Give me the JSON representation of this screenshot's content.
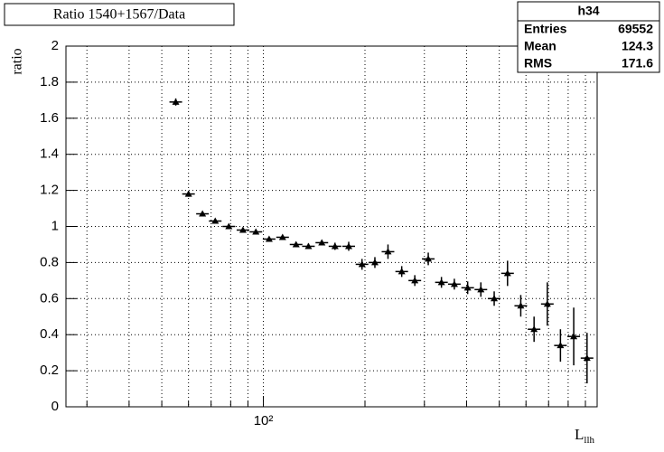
{
  "chart_data": {
    "type": "errorbar",
    "title": "Ratio 1540+1567/Data",
    "ylabel": "ratio",
    "xlabel": {
      "text": "L",
      "subscript": "llh"
    },
    "xscale": "log",
    "xlim": [
      26,
      975
    ],
    "ylim": [
      0,
      2
    ],
    "xticks": [
      {
        "value": 100,
        "label": "10²"
      }
    ],
    "xminor": [
      30,
      40,
      50,
      60,
      70,
      80,
      90,
      200,
      300,
      400,
      500,
      600,
      700,
      800,
      900
    ],
    "yticks": [
      0,
      0.2,
      0.4,
      0.6,
      0.8,
      1,
      1.2,
      1.4,
      1.6,
      1.8,
      2
    ],
    "grid": true,
    "color": "#000000",
    "x": [
      55,
      60,
      66,
      72,
      79,
      87,
      95,
      104,
      114,
      125,
      136,
      149,
      163,
      179,
      196,
      214,
      234,
      257,
      281,
      308,
      337,
      368,
      403,
      441,
      483,
      529,
      579,
      634,
      694,
      759,
      831,
      910
    ],
    "values": [
      1.69,
      1.18,
      1.07,
      1.03,
      1.0,
      0.98,
      0.97,
      0.93,
      0.94,
      0.9,
      0.89,
      0.91,
      0.89,
      0.89,
      0.79,
      0.8,
      0.86,
      0.75,
      0.7,
      0.82,
      0.69,
      0.68,
      0.66,
      0.65,
      0.6,
      0.74,
      0.56,
      0.43,
      0.57,
      0.34,
      0.39,
      0.27
    ],
    "errors": [
      0.02,
      0.015,
      0.01,
      0.01,
      0.01,
      0.01,
      0.01,
      0.01,
      0.01,
      0.01,
      0.015,
      0.015,
      0.02,
      0.025,
      0.03,
      0.03,
      0.04,
      0.03,
      0.03,
      0.035,
      0.03,
      0.03,
      0.035,
      0.04,
      0.04,
      0.07,
      0.06,
      0.07,
      0.12,
      0.09,
      0.16,
      0.14
    ],
    "stats": {
      "name": "h34",
      "rows": [
        [
          "Entries",
          "69552"
        ],
        [
          "Mean",
          "124.3"
        ],
        [
          "RMS",
          "171.6"
        ]
      ]
    }
  }
}
